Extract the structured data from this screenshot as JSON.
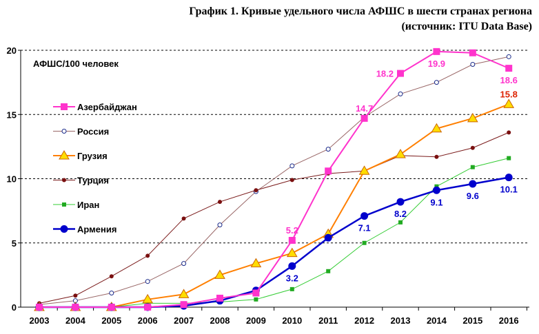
{
  "chart_data": {
    "type": "line",
    "title_line1": "График 1. Кривые удельного числа АФШС в шести странах региона",
    "title_line2": "(источник: ITU Data Base)",
    "ylabel": "АФШС/100 человек",
    "xlabel": "",
    "x": [
      "2003",
      "2004",
      "2005",
      "2006",
      "2007",
      "2008",
      "2009",
      "2010",
      "2011",
      "2012",
      "2013",
      "2014",
      "2015",
      "2016"
    ],
    "ylim": [
      0,
      20
    ],
    "yticks": [
      "0",
      "5",
      "10",
      "15",
      "20"
    ],
    "grid": "horizontal dashed",
    "legend_position": "left",
    "series": [
      {
        "name": "Азербайджан",
        "color": "#ff33cc",
        "marker": "square",
        "width": 2,
        "values": [
          0,
          0,
          0,
          0,
          0.2,
          0.7,
          1.1,
          5.2,
          10.6,
          14.7,
          18.2,
          19.9,
          19.8,
          18.6
        ],
        "labels": [
          {
            "index": 7,
            "text": "5.2",
            "pos": "above"
          },
          {
            "index": 9,
            "text": "14.7",
            "pos": "above"
          },
          {
            "index": 10,
            "text": "18.2",
            "pos": "left"
          },
          {
            "index": 11,
            "text": "19.9",
            "pos": "below"
          },
          {
            "index": 13,
            "text": "18.6",
            "pos": "below"
          }
        ]
      },
      {
        "name": "Россия",
        "color": "#996666",
        "marker": "circle-open",
        "width": 1,
        "values": [
          0.2,
          0.5,
          1.1,
          2.0,
          3.4,
          6.4,
          9.0,
          11.0,
          12.3,
          14.8,
          16.6,
          17.5,
          18.9,
          19.5
        ],
        "labels": []
      },
      {
        "name": "Грузия",
        "color": "#ff7f00",
        "marker": "triangle",
        "width": 2,
        "values": [
          0,
          0,
          0,
          0.6,
          1.0,
          2.5,
          3.4,
          4.2,
          5.7,
          10.6,
          11.9,
          13.9,
          14.7,
          15.8
        ],
        "labels": [
          {
            "index": 13,
            "text": "15.8",
            "pos": "above",
            "color": "#dd2200"
          }
        ]
      },
      {
        "name": "Турция",
        "color": "#7a1a1a",
        "marker": "dot",
        "width": 1,
        "values": [
          0.3,
          0.9,
          2.4,
          4.0,
          6.9,
          8.2,
          9.1,
          9.9,
          10.4,
          10.6,
          11.8,
          11.7,
          12.4,
          13.6
        ],
        "labels": []
      },
      {
        "name": "Иран",
        "color": "#33cc33",
        "marker": "small-square",
        "width": 1,
        "values": [
          0,
          0,
          0,
          0.3,
          0.3,
          0.4,
          0.6,
          1.4,
          2.8,
          5.0,
          6.6,
          9.4,
          10.9,
          11.6
        ],
        "labels": []
      },
      {
        "name": "Армения",
        "color": "#0000cc",
        "marker": "circle",
        "width": 2.5,
        "values": [
          0,
          0,
          0,
          0,
          0.1,
          0.5,
          1.3,
          3.2,
          5.4,
          7.1,
          8.2,
          9.1,
          9.6,
          10.1
        ],
        "labels": [
          {
            "index": 7,
            "text": "3.2",
            "pos": "below"
          },
          {
            "index": 9,
            "text": "7.1",
            "pos": "below"
          },
          {
            "index": 10,
            "text": "8.2",
            "pos": "below"
          },
          {
            "index": 11,
            "text": "9.1",
            "pos": "below"
          },
          {
            "index": 12,
            "text": "9.6",
            "pos": "below"
          },
          {
            "index": 13,
            "text": "10.1",
            "pos": "below"
          }
        ]
      }
    ]
  }
}
